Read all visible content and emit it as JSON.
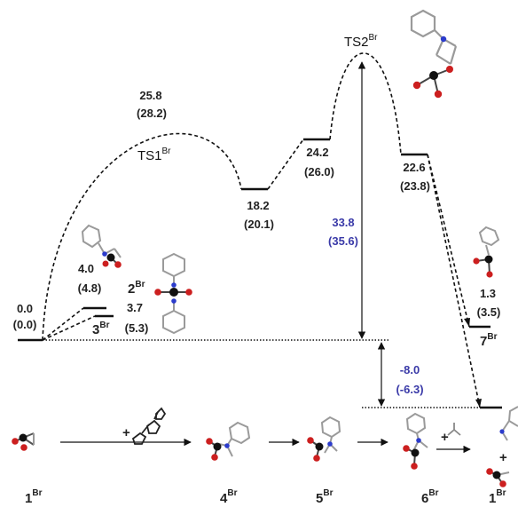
{
  "colors": {
    "line": "#111111",
    "blue_text": "#3a3aa8",
    "oxygen": "#cc1f1f",
    "carbon": "#111111",
    "nitrogen": "#2b3bcc",
    "hydrogen": "#9a9a9a"
  },
  "energies": {
    "s1": "0.0",
    "s1p": "(0.0)",
    "s2": "4.0",
    "s2p": "(4.8)",
    "s3": "3.7",
    "s3p": "(5.3)",
    "ts1": "25.8",
    "ts1p": "(28.2)",
    "i4": "18.2",
    "i4p": "(20.1)",
    "i5": "24.2",
    "i5p": "(26.0)",
    "i6": "22.6",
    "i6p": "(23.8)",
    "i7": "1.3",
    "i7p": "(3.5)"
  },
  "barriers": {
    "up": "33.8",
    "upp": "(35.6)",
    "down": "-8.0",
    "downp": "(-6.3)"
  },
  "species": {
    "ts1": {
      "base": "TS1",
      "sup": "Br"
    },
    "ts2": {
      "base": "TS2",
      "sup": "Br"
    },
    "c2": {
      "base": "2",
      "sup": "Br"
    },
    "c3": {
      "base": "3",
      "sup": "Br"
    },
    "c7": {
      "base": "7",
      "sup": "Br"
    },
    "b1": {
      "base": "1",
      "sup": "Br"
    },
    "b4": {
      "base": "4",
      "sup": "Br"
    },
    "b5": {
      "base": "5",
      "sup": "Br"
    },
    "b6": {
      "base": "6",
      "sup": "Br"
    },
    "b1e": {
      "base": "1",
      "sup": "Br"
    }
  },
  "symbols": {
    "plus": "+"
  }
}
